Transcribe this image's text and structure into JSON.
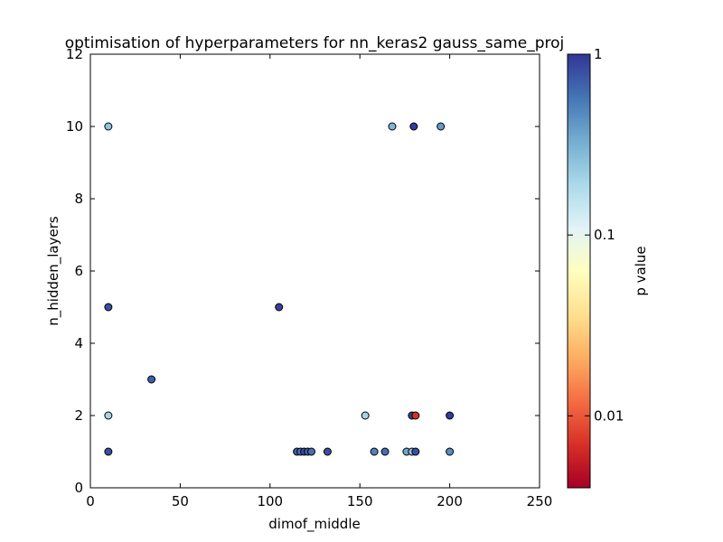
{
  "chart_data": {
    "type": "scatter",
    "title": "optimisation of hyperparameters for nn_keras2 gauss_same_proj",
    "xlabel": "dimof_middle",
    "ylabel": "n_hidden_layers",
    "xlim": [
      0,
      250
    ],
    "ylim": [
      0,
      12
    ],
    "xticks": [
      "0",
      "50",
      "100",
      "150",
      "200",
      "250"
    ],
    "yticks": [
      "0",
      "2",
      "4",
      "6",
      "8",
      "10",
      "12"
    ],
    "grid": false,
    "colorbar": {
      "label": "p value",
      "scale": "log",
      "range": [
        0.004,
        1
      ],
      "ticks": [
        {
          "value": 0.01,
          "label": "0.01"
        },
        {
          "value": 0.1,
          "label": "0.1"
        },
        {
          "value": 1,
          "label": "1"
        }
      ],
      "colormap": [
        "#a50026",
        "#d73027",
        "#f46d43",
        "#fdae61",
        "#fee090",
        "#ffffbf",
        "#e0f3f8",
        "#abd9e9",
        "#74add1",
        "#4575b4",
        "#313695"
      ]
    },
    "points": [
      {
        "x": 10,
        "y": 10,
        "p": 0.25
      },
      {
        "x": 10,
        "y": 5,
        "p": 0.8
      },
      {
        "x": 10,
        "y": 2,
        "p": 0.2
      },
      {
        "x": 10,
        "y": 1,
        "p": 0.8
      },
      {
        "x": 34,
        "y": 3,
        "p": 0.7
      },
      {
        "x": 105,
        "y": 5,
        "p": 0.9
      },
      {
        "x": 115,
        "y": 1,
        "p": 0.7
      },
      {
        "x": 117,
        "y": 1,
        "p": 0.6
      },
      {
        "x": 119,
        "y": 1,
        "p": 0.8
      },
      {
        "x": 121,
        "y": 1,
        "p": 0.7
      },
      {
        "x": 123,
        "y": 1,
        "p": 0.6
      },
      {
        "x": 132,
        "y": 1,
        "p": 0.8
      },
      {
        "x": 153,
        "y": 2,
        "p": 0.2
      },
      {
        "x": 158,
        "y": 1,
        "p": 0.5
      },
      {
        "x": 164,
        "y": 1,
        "p": 0.6
      },
      {
        "x": 168,
        "y": 10,
        "p": 0.3
      },
      {
        "x": 176,
        "y": 1,
        "p": 0.35
      },
      {
        "x": 179,
        "y": 2,
        "p": 0.9
      },
      {
        "x": 179,
        "y": 1,
        "p": 0.25
      },
      {
        "x": 180,
        "y": 10,
        "p": 0.95
      },
      {
        "x": 181,
        "y": 1,
        "p": 0.8
      },
      {
        "x": 181,
        "y": 2,
        "p": 0.007
      },
      {
        "x": 195,
        "y": 10,
        "p": 0.4
      },
      {
        "x": 200,
        "y": 2,
        "p": 0.95
      },
      {
        "x": 200,
        "y": 1,
        "p": 0.45
      }
    ]
  }
}
